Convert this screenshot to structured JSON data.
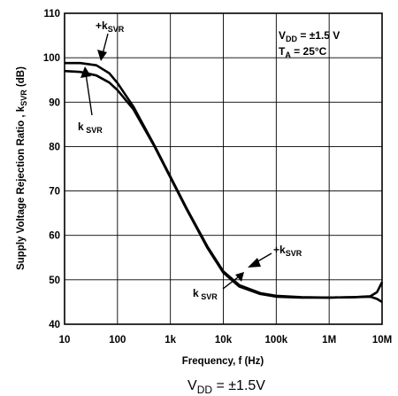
{
  "chart_data": {
    "type": "line",
    "xscale": "log",
    "xlim": [
      10,
      10000000
    ],
    "ylim": [
      40,
      110
    ],
    "xlabel": "Frequency, f (Hz)",
    "ylabel": "Supply Voltage Rejection Ratio , kSVR (dB)",
    "ylabel_parts": {
      "main": "Supply Voltage Rejection Ratio , k",
      "sub": "SVR",
      "unit": " (dB)"
    },
    "xticks": [
      10,
      100,
      1000,
      10000,
      100000,
      1000000,
      10000000
    ],
    "xtick_labels": [
      "10",
      "100",
      "1k",
      "10k",
      "100k",
      "1M",
      "10M"
    ],
    "yticks": [
      40,
      50,
      60,
      70,
      80,
      90,
      100,
      110
    ],
    "ytick_labels": [
      "40",
      "50",
      "60",
      "70",
      "80",
      "90",
      "100",
      "110"
    ],
    "grid": true,
    "conditions": {
      "vdd": {
        "main": "V",
        "sub": "DD",
        "rest": " = ±1.5 V"
      },
      "ta": {
        "main": "T",
        "sub": "A",
        "rest": " = 25°C"
      }
    },
    "series": [
      {
        "label": {
          "main": "+k",
          "sub": "SVR"
        },
        "x": [
          10,
          20,
          40,
          70,
          100,
          200,
          500,
          1000,
          2000,
          5000,
          10000,
          20000,
          50000,
          100000,
          300000,
          1000000,
          3000000,
          6000000,
          8000000,
          10000000
        ],
        "y": [
          98.8,
          98.8,
          98.3,
          96.5,
          94.3,
          89.0,
          80.2,
          73.2,
          66.2,
          57.5,
          51.9,
          48.8,
          47.0,
          46.4,
          46.1,
          46.0,
          46.1,
          46.3,
          47.2,
          49.5
        ]
      },
      {
        "label": {
          "main": "k",
          "sub": "SVR"
        },
        "x": [
          10,
          20,
          40,
          70,
          100,
          200,
          500,
          1000,
          2000,
          5000,
          10000,
          20000,
          50000,
          100000,
          300000,
          1000000,
          3000000,
          6000000,
          8000000,
          10000000
        ],
        "y": [
          97.0,
          96.8,
          96.0,
          94.4,
          92.7,
          88.4,
          80.0,
          73.0,
          66.0,
          57.2,
          51.6,
          48.5,
          46.8,
          46.2,
          46.0,
          46.0,
          46.1,
          46.2,
          45.7,
          45.0
        ]
      }
    ],
    "annotations": [
      {
        "series": 0,
        "label": {
          "main": "+k",
          "sub": "SVR"
        }
      },
      {
        "series": 1,
        "label": {
          "main": "k",
          "sub": " SVR"
        }
      },
      {
        "series": 0,
        "label": {
          "main": "+k",
          "sub": "SVR"
        }
      },
      {
        "series": 1,
        "label": {
          "main": "k",
          "sub": " SVR"
        }
      }
    ]
  },
  "caption": {
    "main": "V",
    "sub": "DD",
    "rest": " = ±1.5V"
  }
}
